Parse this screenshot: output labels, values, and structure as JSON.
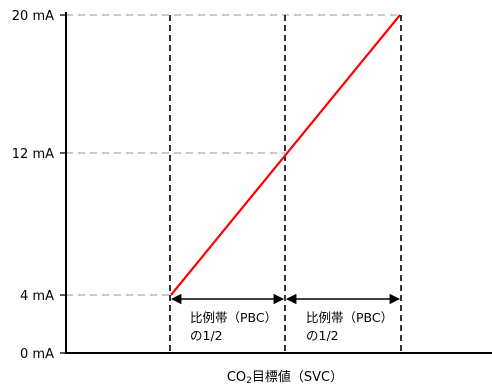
{
  "diagram": {
    "y_labels": {
      "top": "20 mA",
      "mid": "12 mA",
      "low": "4 mA",
      "zero": "0 mA"
    },
    "x_label": {
      "prefix": "CO",
      "subscript": "2",
      "suffix": "目標値（SVC）"
    },
    "annotations": [
      {
        "line1": "比例帯（PBC）",
        "line2": "の1/2"
      },
      {
        "line1": "比例帯（PBC）",
        "line2": "の1/2"
      }
    ],
    "colors": {
      "signal_line": "#ff0000",
      "guide_line": "#aaaaaa",
      "axis": "#000000"
    }
  }
}
